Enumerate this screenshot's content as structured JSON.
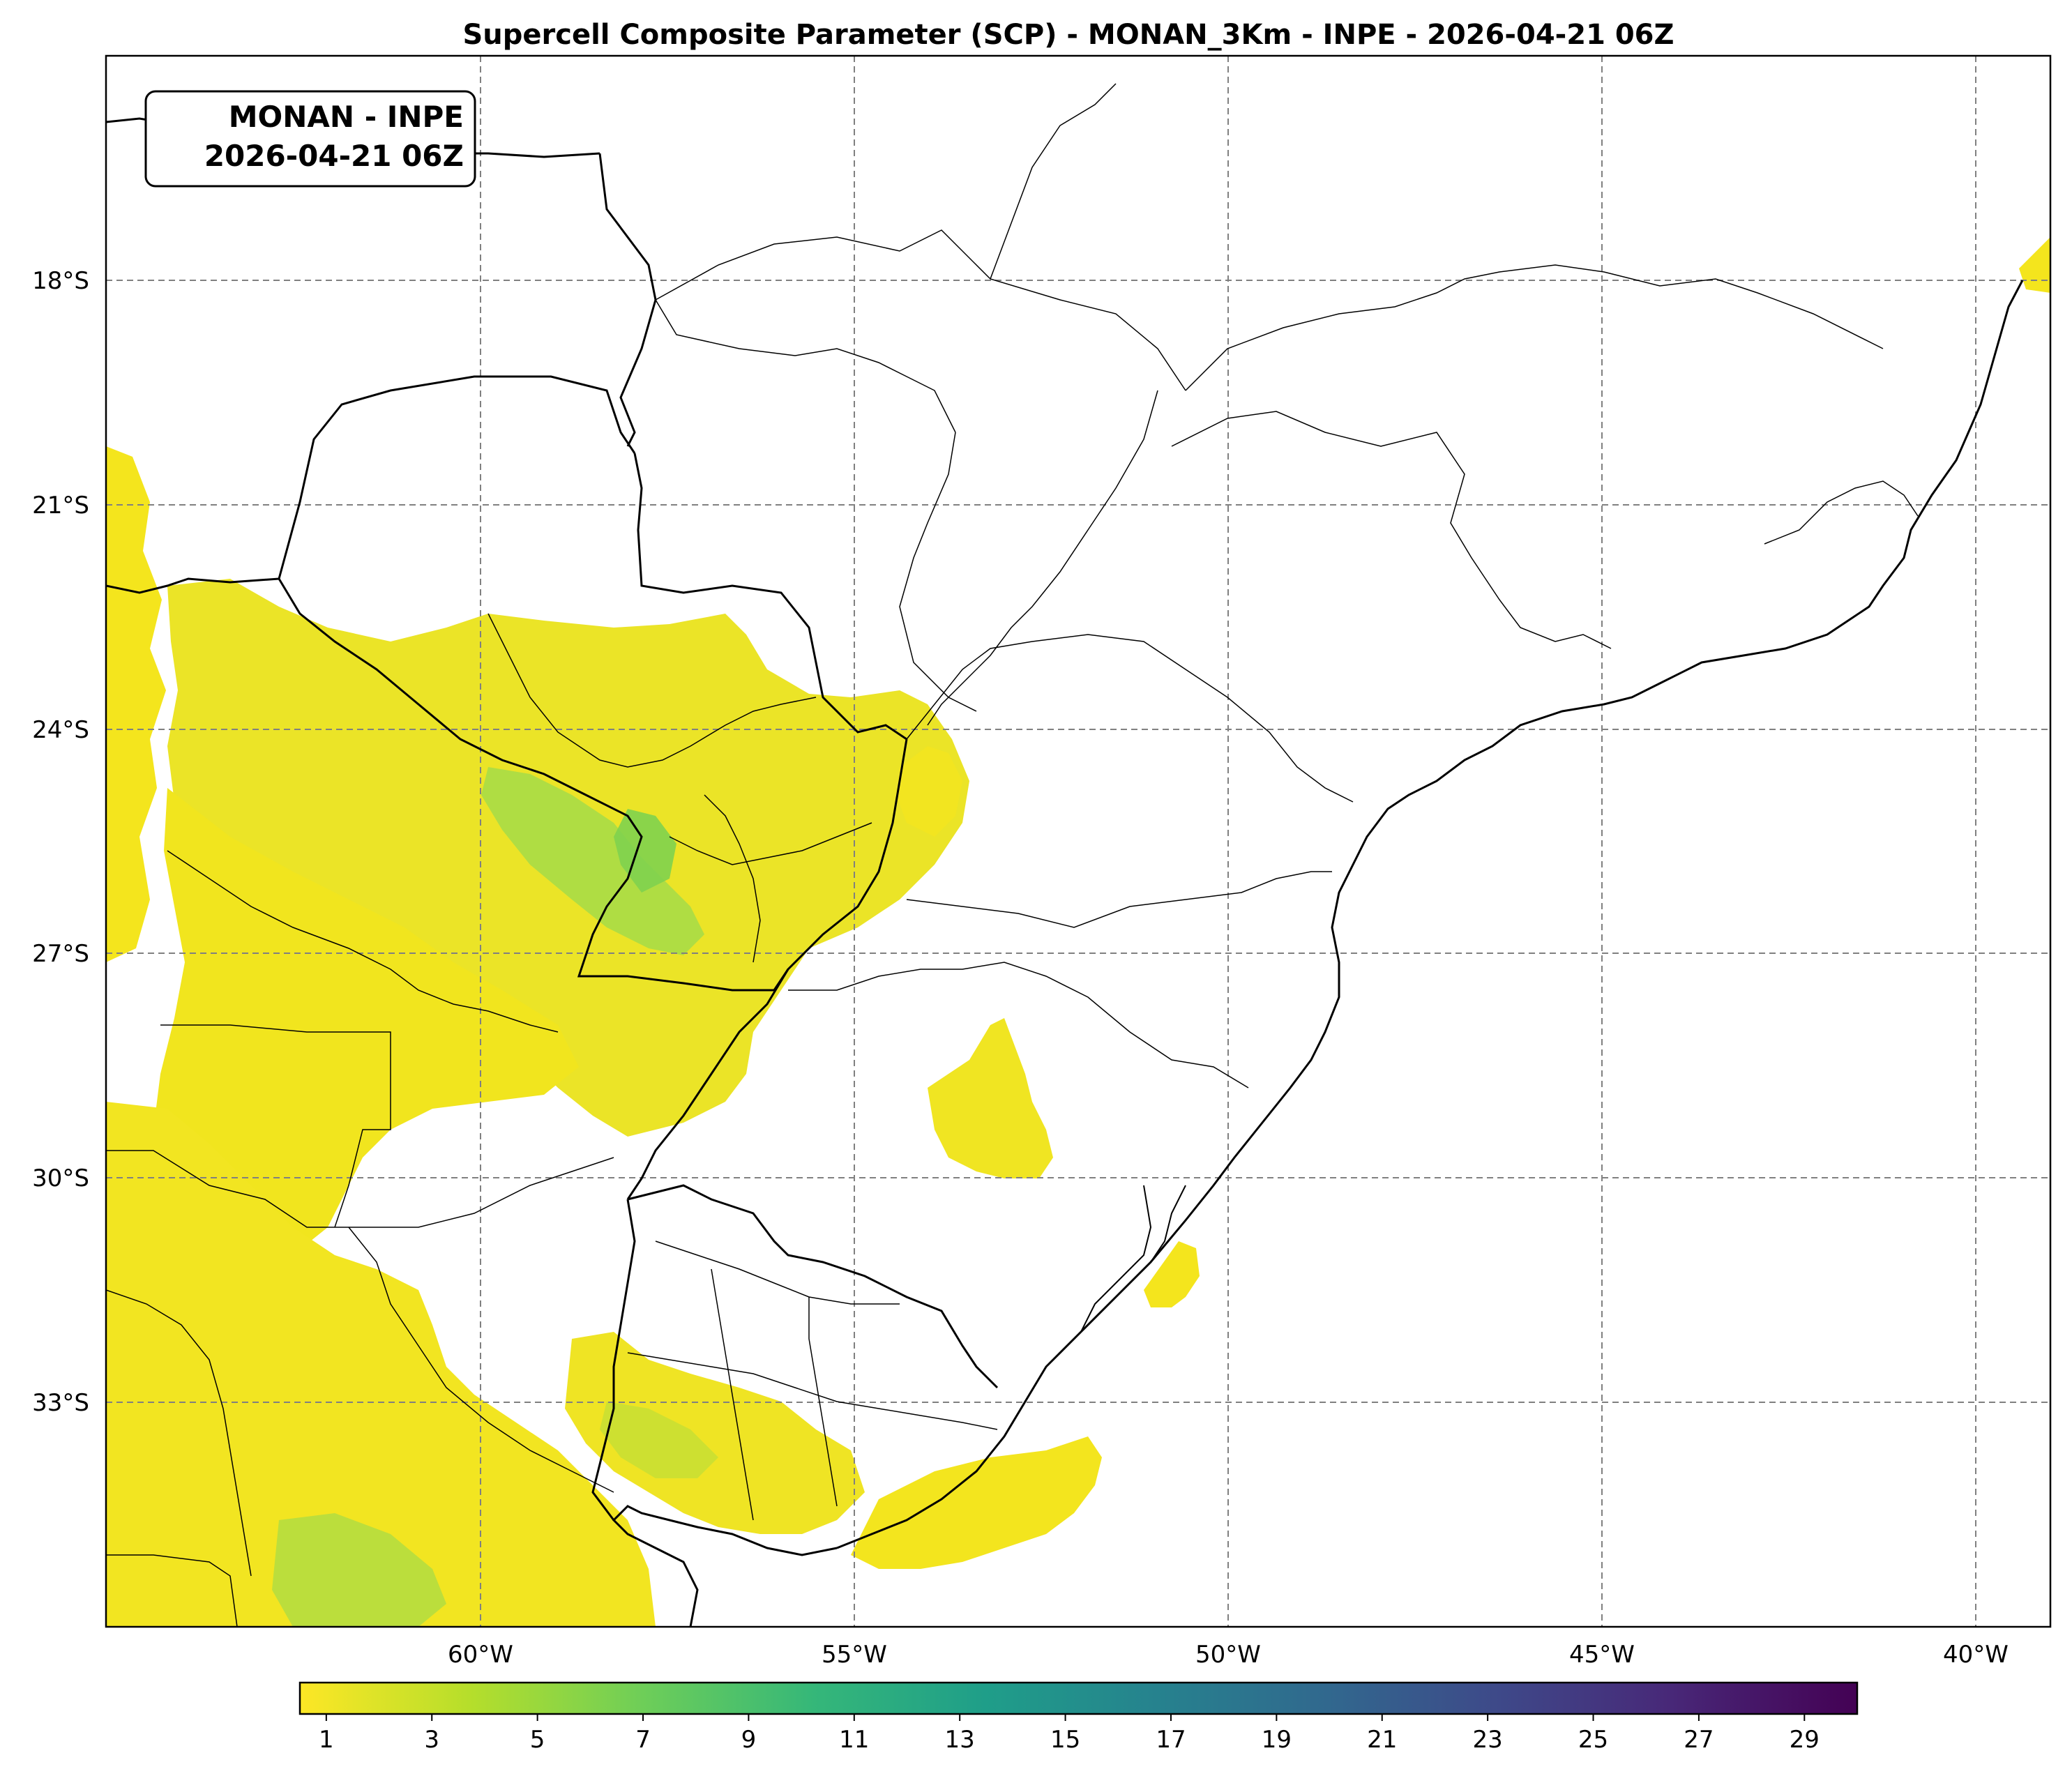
{
  "title": "Supercell Composite Parameter (SCP) - MONAN_3Km - INPE - 2026-04-21 06Z",
  "info_box": {
    "line1": "MONAN - INPE",
    "line2": "2026-04-21 06Z"
  },
  "map": {
    "lon_range": [
      -65,
      -39
    ],
    "lat_range": [
      -36.5,
      -15.5
    ],
    "lon_ticks": [
      {
        "value": -60,
        "label": "60°W"
      },
      {
        "value": -55,
        "label": "55°W"
      },
      {
        "value": -50,
        "label": "50°W"
      },
      {
        "value": -45,
        "label": "45°W"
      },
      {
        "value": -40,
        "label": "40°W"
      }
    ],
    "lat_ticks": [
      {
        "value": -18,
        "label": "18°S"
      },
      {
        "value": -21,
        "label": "21°S"
      },
      {
        "value": -24,
        "label": "24°S"
      },
      {
        "value": -27,
        "label": "27°S"
      },
      {
        "value": -30,
        "label": "30°S"
      },
      {
        "value": -33,
        "label": "33°S"
      }
    ],
    "gridlines": "dashed",
    "field_colors": {
      "low": "#f4e51d",
      "mid_low": "#d9e23a",
      "mid": "#a4da4a",
      "mid_high": "#5ec962",
      "high": "#2eb37c"
    }
  },
  "colorbar": {
    "colormap": "viridis_r",
    "range": [
      0.5,
      30
    ],
    "tick_labels": [
      "1",
      "3",
      "5",
      "7",
      "9",
      "11",
      "13",
      "15",
      "17",
      "19",
      "21",
      "23",
      "25",
      "27",
      "29"
    ],
    "tick_values": [
      1,
      3,
      5,
      7,
      9,
      11,
      13,
      15,
      17,
      19,
      21,
      23,
      25,
      27,
      29
    ],
    "colors": [
      "#fde725",
      "#b5de2b",
      "#6ece58",
      "#35b779",
      "#1f9e89",
      "#26828e",
      "#31688e",
      "#3e4989",
      "#482878",
      "#440154"
    ]
  }
}
